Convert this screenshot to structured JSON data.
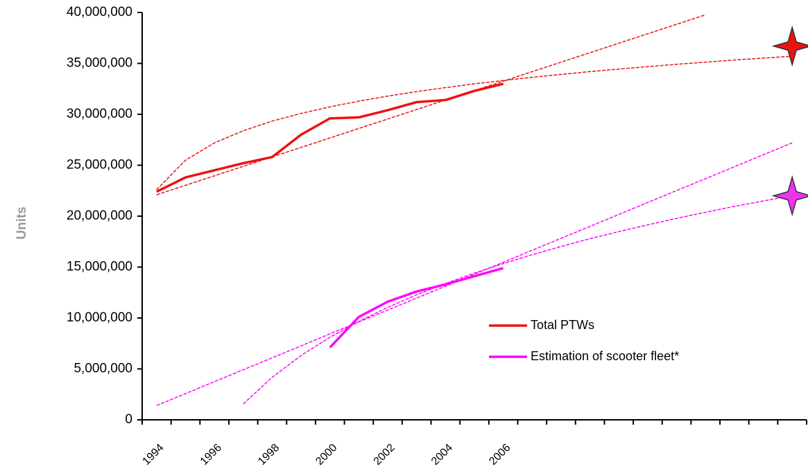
{
  "chart_data": {
    "type": "line",
    "y_label": "Units",
    "categories": [
      "1994",
      null,
      "1996",
      null,
      "1998",
      null,
      "2000",
      null,
      "2002",
      null,
      "2004",
      null,
      "2006",
      null,
      null,
      null,
      null,
      null,
      null,
      null,
      null,
      null,
      null
    ],
    "series": [
      {
        "name": "Total PTWs",
        "color": "#ee1111",
        "values": [
          22400000,
          23800000,
          24500000,
          25200000,
          25800000,
          28000000,
          29600000,
          29700000,
          30400000,
          31200000,
          31400000,
          32300000,
          33000000,
          null,
          null,
          null,
          null,
          null,
          null,
          null,
          null,
          null,
          null
        ]
      },
      {
        "name": "Estimation of scooter fleet*",
        "color": "#ff00ff",
        "values": [
          null,
          null,
          null,
          null,
          null,
          null,
          7100000,
          10100000,
          11600000,
          12600000,
          13300000,
          14100000,
          14900000,
          null,
          null,
          null,
          null,
          null,
          null,
          null,
          null,
          null,
          null
        ]
      }
    ],
    "trendlines": [
      {
        "color": "#ee1111",
        "values": [
          22100000,
          23030000,
          23960000,
          24890000,
          25820000,
          26750000,
          27680000,
          28610000,
          29540000,
          30470000,
          31400000,
          32330000,
          33260000,
          34190000,
          35120000,
          36050000,
          36980000,
          37910000,
          38840000,
          39770000,
          null,
          null,
          null
        ]
      },
      {
        "color": "#ee1111",
        "values": [
          22600000,
          25500000,
          27190000,
          28390000,
          29330000,
          30090000,
          30730000,
          31290000,
          31780000,
          32230000,
          32620000,
          32990000,
          33320000,
          33630000,
          33920000,
          34190000,
          34440000,
          34680000,
          34910000,
          35120000,
          35330000,
          35520000,
          35710000
        ]
      },
      {
        "color": "#ff00ff",
        "values": [
          1400000,
          2570000,
          3750000,
          4920000,
          6090000,
          7260000,
          8440000,
          9610000,
          10780000,
          11950000,
          13130000,
          14300000,
          15470000,
          16650000,
          17820000,
          18990000,
          20160000,
          21340000,
          22510000,
          23680000,
          24850000,
          26030000,
          27200000
        ]
      },
      {
        "color": "#ff00ff",
        "values": [
          null,
          null,
          null,
          1560000,
          4170000,
          6310000,
          8110000,
          9660000,
          11040000,
          12280000,
          13390000,
          14410000,
          15340000,
          16210000,
          17020000,
          17780000,
          18480000,
          19140000,
          19780000,
          20380000,
          20960000,
          21490000,
          22010000
        ]
      }
    ],
    "targets": [
      {
        "color": "#ee1111",
        "values": [
          null,
          null,
          null,
          null,
          null,
          null,
          null,
          null,
          null,
          null,
          null,
          null,
          null,
          null,
          null,
          null,
          null,
          null,
          null,
          null,
          null,
          null,
          36700000
        ]
      },
      {
        "color": "#ee33ee",
        "values": [
          null,
          null,
          null,
          null,
          null,
          null,
          null,
          null,
          null,
          null,
          null,
          null,
          null,
          null,
          null,
          null,
          null,
          null,
          null,
          null,
          null,
          null,
          22000000
        ]
      }
    ],
    "ylim": [
      0,
      40000000
    ],
    "yticks": [
      0,
      {
        "value": 5000000,
        "label": "5,000,000"
      },
      {
        "value": 10000000,
        "label": "10,000,000"
      },
      {
        "value": 15000000,
        "label": "15,000,000"
      },
      {
        "value": 20000000,
        "label": "20,000,000"
      },
      {
        "value": 25000000,
        "label": "25,000,000"
      },
      {
        "value": 30000000,
        "label": "30,000,000"
      },
      {
        "value": 35000000,
        "label": "35,000,000"
      },
      {
        "value": 40000000,
        "label": "40,000,000"
      }
    ],
    "grid": false,
    "legend": "lower-center-right"
  }
}
